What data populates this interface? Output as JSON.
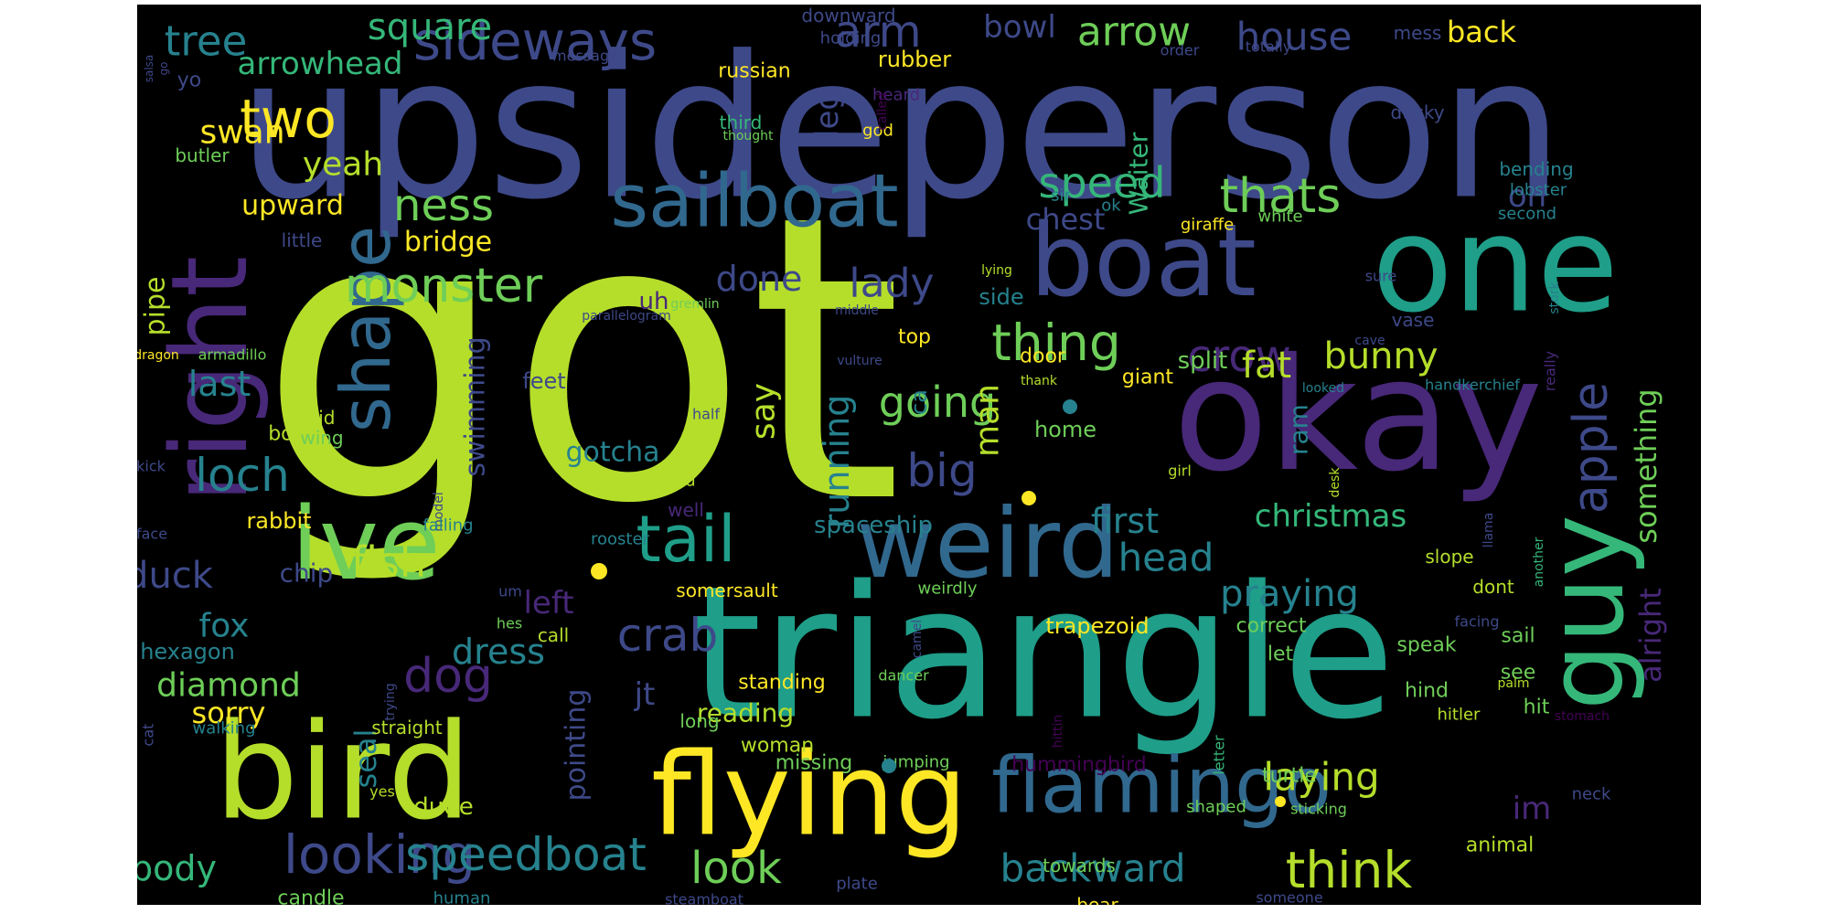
{
  "palette": {
    "background": "#000000",
    "page": "#ffffff",
    "yellow": "#fde725",
    "lime": "#b5de2b",
    "lightgreen": "#6ece58",
    "green": "#35b779",
    "teal": "#1f9e89",
    "cyan": "#26828e",
    "blue": "#31688e",
    "indigo": "#3e4989",
    "purple": "#482878",
    "darkpurple": "#440154"
  },
  "words": [
    {
      "text": "got",
      "color": "lime"
    },
    {
      "text": "upsideperson",
      "color": "indigo"
    },
    {
      "text": "triangle",
      "color": "teal"
    },
    {
      "text": "bird",
      "color": "lime"
    },
    {
      "text": "flying",
      "color": "yellow"
    },
    {
      "text": "okay",
      "color": "purple"
    },
    {
      "text": "one",
      "color": "teal"
    },
    {
      "text": "right",
      "color": "purple"
    },
    {
      "text": "guy",
      "color": "green"
    },
    {
      "text": "boat",
      "color": "indigo"
    },
    {
      "text": "weird",
      "color": "blue"
    },
    {
      "text": "ive",
      "color": "lightgreen"
    },
    {
      "text": "sailboat",
      "color": "blue"
    },
    {
      "text": "flamingo",
      "color": "blue"
    },
    {
      "text": "shape",
      "color": "blue"
    },
    {
      "text": "looking",
      "color": "indigo"
    },
    {
      "text": "tail",
      "color": "teal"
    },
    {
      "text": "sideways",
      "color": "indigo"
    },
    {
      "text": "thing",
      "color": "lightgreen"
    },
    {
      "text": "speedboat",
      "color": "cyan"
    },
    {
      "text": "apple",
      "color": "indigo"
    },
    {
      "text": "think",
      "color": "lime"
    },
    {
      "text": "monster",
      "color": "lightgreen"
    },
    {
      "text": "two",
      "color": "yellow"
    },
    {
      "text": "crab",
      "color": "indigo"
    },
    {
      "text": "loch",
      "color": "cyan"
    },
    {
      "text": "thats",
      "color": "lightgreen"
    },
    {
      "text": "backward",
      "color": "cyan"
    },
    {
      "text": "arm",
      "color": "indigo"
    },
    {
      "text": "dog",
      "color": "purple"
    },
    {
      "text": "look",
      "color": "lightgreen"
    },
    {
      "text": "tree",
      "color": "cyan"
    },
    {
      "text": "fish",
      "color": "lime"
    },
    {
      "text": "crow",
      "color": "purple"
    },
    {
      "text": "arrow",
      "color": "lightgreen"
    },
    {
      "text": "house",
      "color": "indigo"
    },
    {
      "text": "square",
      "color": "green"
    },
    {
      "text": "speed",
      "color": "green"
    },
    {
      "text": "ness",
      "color": "lightgreen"
    },
    {
      "text": "lady",
      "color": "indigo"
    },
    {
      "text": "going",
      "color": "lightgreen"
    },
    {
      "text": "big",
      "color": "indigo"
    },
    {
      "text": "body",
      "color": "green"
    },
    {
      "text": "dress",
      "color": "cyan"
    },
    {
      "text": "laying",
      "color": "lime"
    },
    {
      "text": "praying",
      "color": "cyan"
    },
    {
      "text": "head",
      "color": "cyan"
    },
    {
      "text": "bunny",
      "color": "lime"
    },
    {
      "text": "fat",
      "color": "lime"
    },
    {
      "text": "duck",
      "color": "indigo"
    },
    {
      "text": "diamond",
      "color": "lightgreen"
    },
    {
      "text": "last",
      "color": "cyan"
    },
    {
      "text": "arrowhead",
      "color": "green"
    },
    {
      "text": "christmas",
      "color": "green"
    },
    {
      "text": "something",
      "color": "lightgreen"
    },
    {
      "text": "alright",
      "color": "purple"
    },
    {
      "text": "swimming",
      "color": "indigo"
    },
    {
      "text": "running",
      "color": "cyan"
    },
    {
      "text": "first",
      "color": "cyan"
    },
    {
      "text": "done",
      "color": "indigo"
    },
    {
      "text": "man",
      "color": "lime"
    },
    {
      "text": "say",
      "color": "lime"
    },
    {
      "text": "fox",
      "color": "cyan"
    },
    {
      "text": "swan",
      "color": "yellow"
    },
    {
      "text": "yeah",
      "color": "lime"
    },
    {
      "text": "bowl",
      "color": "indigo"
    },
    {
      "text": "back",
      "color": "yellow"
    },
    {
      "text": "im",
      "color": "purple"
    },
    {
      "text": "oh",
      "color": "indigo"
    },
    {
      "text": "leg",
      "color": "indigo"
    },
    {
      "text": "left",
      "color": "purple"
    },
    {
      "text": "sorry",
      "color": "yellow"
    },
    {
      "text": "seal",
      "color": "cyan"
    },
    {
      "text": "pipe",
      "color": "lime"
    },
    {
      "text": "jt",
      "color": "indigo"
    },
    {
      "text": "pointing",
      "color": "indigo"
    },
    {
      "text": "reading",
      "color": "lime"
    },
    {
      "text": "upward",
      "color": "yellow"
    },
    {
      "text": "chest",
      "color": "indigo"
    },
    {
      "text": "bridge",
      "color": "yellow"
    },
    {
      "text": "gotcha",
      "color": "cyan"
    },
    {
      "text": "spaceship",
      "color": "cyan"
    },
    {
      "text": "ram",
      "color": "cyan"
    },
    {
      "text": "Waiter",
      "color": "green"
    },
    {
      "text": "uh",
      "color": "purple"
    },
    {
      "text": "rubber",
      "color": "yellow"
    },
    {
      "text": "russian",
      "color": "yellow"
    },
    {
      "text": "split",
      "color": "lightgreen"
    },
    {
      "text": "rabbit",
      "color": "yellow"
    },
    {
      "text": "trapezoid",
      "color": "yellow"
    },
    {
      "text": "hummingbird",
      "color": "darkpurple"
    },
    {
      "text": "home",
      "color": "lightgreen"
    },
    {
      "text": "chip",
      "color": "indigo"
    },
    {
      "text": "dude",
      "color": "lime"
    },
    {
      "text": "woman",
      "color": "lime"
    },
    {
      "text": "standing",
      "color": "yellow"
    },
    {
      "text": "missing",
      "color": "lightgreen"
    },
    {
      "text": "hexagon",
      "color": "cyan"
    },
    {
      "text": "animal",
      "color": "lime"
    },
    {
      "text": "book",
      "color": "lime"
    },
    {
      "text": "door",
      "color": "yellow"
    },
    {
      "text": "side",
      "color": "cyan"
    },
    {
      "text": "feet",
      "color": "indigo"
    },
    {
      "text": "top",
      "color": "yellow"
    },
    {
      "text": "ca",
      "color": "cyan"
    },
    {
      "text": "giant",
      "color": "yellow"
    },
    {
      "text": "correct",
      "color": "lightgreen"
    },
    {
      "text": "speak",
      "color": "lightgreen"
    },
    {
      "text": "let",
      "color": "lightgreen"
    },
    {
      "text": "see",
      "color": "lightgreen"
    },
    {
      "text": "hit",
      "color": "lightgreen"
    },
    {
      "text": "sail",
      "color": "lightgreen"
    },
    {
      "text": "hind",
      "color": "lightgreen"
    },
    {
      "text": "towards",
      "color": "lightgreen"
    },
    {
      "text": "candle",
      "color": "lightgreen"
    },
    {
      "text": "bear",
      "color": "yellow"
    },
    {
      "text": "turtle",
      "color": "lightgreen"
    },
    {
      "text": "ducky",
      "color": "indigo"
    },
    {
      "text": "vase",
      "color": "indigo"
    },
    {
      "text": "mess",
      "color": "indigo"
    },
    {
      "text": "heard",
      "color": "purple"
    },
    {
      "text": "downward",
      "color": "indigo"
    },
    {
      "text": "holding",
      "color": "indigo"
    },
    {
      "text": "message",
      "color": "indigo"
    },
    {
      "text": "yo",
      "color": "indigo"
    },
    {
      "text": "order",
      "color": "indigo"
    },
    {
      "text": "totally",
      "color": "indigo"
    },
    {
      "text": "third",
      "color": "green"
    },
    {
      "text": "god",
      "color": "yellow"
    },
    {
      "text": "thought",
      "color": "lightgreen"
    },
    {
      "text": "called",
      "color": "darkpurple"
    },
    {
      "text": "butler",
      "color": "lightgreen"
    },
    {
      "text": "salsa",
      "color": "indigo"
    },
    {
      "text": "go",
      "color": "indigo"
    },
    {
      "text": "bending",
      "color": "cyan"
    },
    {
      "text": "lobster",
      "color": "cyan"
    },
    {
      "text": "second",
      "color": "cyan"
    },
    {
      "text": "sir",
      "color": "cyan"
    },
    {
      "text": "ok",
      "color": "cyan"
    },
    {
      "text": "giraffe",
      "color": "yellow"
    },
    {
      "text": "white",
      "color": "lightgreen"
    },
    {
      "text": "little",
      "color": "indigo"
    },
    {
      "text": "lying",
      "color": "lime"
    },
    {
      "text": "sure",
      "color": "indigo"
    },
    {
      "text": "stork",
      "color": "cyan"
    },
    {
      "text": "parallelogram",
      "color": "indigo"
    },
    {
      "text": "gremlin",
      "color": "lightgreen"
    },
    {
      "text": "middle",
      "color": "indigo"
    },
    {
      "text": "cave",
      "color": "indigo"
    },
    {
      "text": "really",
      "color": "purple"
    },
    {
      "text": "dragon",
      "color": "yellow"
    },
    {
      "text": "armadillo",
      "color": "lightgreen"
    },
    {
      "text": "vulture",
      "color": "indigo"
    },
    {
      "text": "thank",
      "color": "lime"
    },
    {
      "text": "looked",
      "color": "cyan"
    },
    {
      "text": "handkerchief",
      "color": "cyan"
    },
    {
      "text": "said",
      "color": "lime"
    },
    {
      "text": "wing",
      "color": "lightgreen"
    },
    {
      "text": "half",
      "color": "indigo"
    },
    {
      "text": "kick",
      "color": "indigo"
    },
    {
      "text": "face",
      "color": "indigo"
    },
    {
      "text": "model",
      "color": "indigo"
    },
    {
      "text": "hand",
      "color": "lime"
    },
    {
      "text": "well",
      "color": "purple"
    },
    {
      "text": "girl",
      "color": "lime"
    },
    {
      "text": "desk",
      "color": "lime"
    },
    {
      "text": "llama",
      "color": "indigo"
    },
    {
      "text": "another",
      "color": "green"
    },
    {
      "text": "falling",
      "color": "cyan"
    },
    {
      "text": "rooster",
      "color": "cyan"
    },
    {
      "text": "slope",
      "color": "lime"
    },
    {
      "text": "dont",
      "color": "lime"
    },
    {
      "text": "um",
      "color": "indigo"
    },
    {
      "text": "somersault",
      "color": "yellow"
    },
    {
      "text": "weirdly",
      "color": "lightgreen"
    },
    {
      "text": "facing",
      "color": "indigo"
    },
    {
      "text": "hes",
      "color": "lightgreen"
    },
    {
      "text": "call",
      "color": "lime"
    },
    {
      "text": "camel",
      "color": "indigo"
    },
    {
      "text": "trying",
      "color": "indigo"
    },
    {
      "text": "dancer",
      "color": "lightgreen"
    },
    {
      "text": "cat",
      "color": "indigo"
    },
    {
      "text": "walking",
      "color": "cyan"
    },
    {
      "text": "straight",
      "color": "lime"
    },
    {
      "text": "long",
      "color": "lightgreen"
    },
    {
      "text": "hittin",
      "color": "darkpurple"
    },
    {
      "text": "letter",
      "color": "green"
    },
    {
      "text": "palm",
      "color": "lime"
    },
    {
      "text": "hitler",
      "color": "lime"
    },
    {
      "text": "stomach",
      "color": "darkpurple"
    },
    {
      "text": "jumping",
      "color": "lightgreen"
    },
    {
      "text": "neck",
      "color": "indigo"
    },
    {
      "text": "yes",
      "color": "lime"
    },
    {
      "text": "shaped",
      "color": "lightgreen"
    },
    {
      "text": "sticking",
      "color": "lightgreen"
    },
    {
      "text": "human",
      "color": "cyan"
    },
    {
      "text": "steamboat",
      "color": "indigo"
    },
    {
      "text": "plate",
      "color": "indigo"
    },
    {
      "text": "someone",
      "color": "indigo"
    }
  ]
}
